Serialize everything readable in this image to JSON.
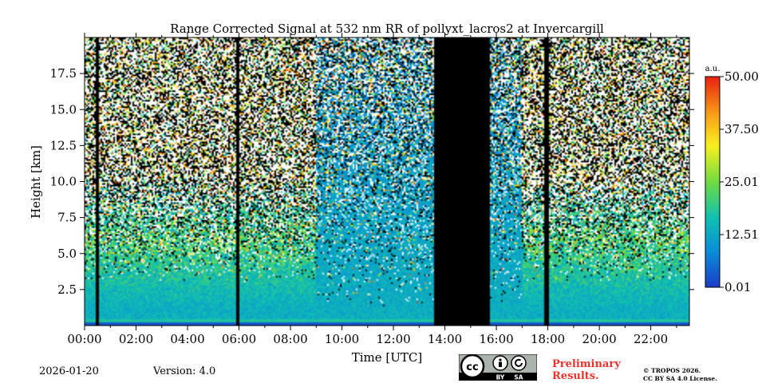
{
  "chart_data": {
    "type": "heatmap",
    "title": "Range Corrected Signal at 532 nm RR of pollyxt_lacros2 at Invercargill",
    "xlabel": "Time [UTC]",
    "ylabel": "Height [km]",
    "xlim": [
      0,
      23.5
    ],
    "ylim": [
      0,
      20
    ],
    "x_ticks": [
      0,
      2,
      4,
      6,
      8,
      10,
      12,
      14,
      16,
      18,
      20,
      22
    ],
    "x_tick_labels": [
      "00:00",
      "02:00",
      "04:00",
      "06:00",
      "08:00",
      "10:00",
      "12:00",
      "14:00",
      "16:00",
      "18:00",
      "20:00",
      "22:00"
    ],
    "y_ticks": [
      2.5,
      5.0,
      7.5,
      10.0,
      12.5,
      15.0,
      17.5
    ],
    "y_tick_labels": [
      "2.5",
      "5.0",
      "7.5",
      "10.0",
      "12.5",
      "15.0",
      "17.5"
    ],
    "colorbar": {
      "unit_label": "a.u.",
      "min": 0.01,
      "max": 50.0,
      "tick_values": [
        0.01,
        12.51,
        25.01,
        37.5,
        50.0
      ],
      "tick_labels": [
        "0.01",
        "12.51",
        "25.01",
        "37.50",
        "50.00"
      ],
      "colors": [
        "#1a3cc8",
        "#0a8ed8",
        "#10c0b0",
        "#70dc40",
        "#f8f020",
        "#f89818",
        "#e82010"
      ]
    },
    "no_data_periods": [
      {
        "start": 13.6,
        "end": 15.75
      }
    ],
    "data_gaps": [
      0.5,
      5.95,
      17.95
    ],
    "clear_periods": [
      {
        "start": 9.0,
        "end": 17.0
      }
    ]
  },
  "footer": {
    "date": "2026-01-20",
    "version": "Version: 4.0",
    "preliminary_line1": "Preliminary",
    "preliminary_line2": "Results.",
    "copyright_line1": "© TROPOS 2026.",
    "copyright_line2": "CC BY SA 4.0 License.",
    "license_by": "BY",
    "license_sa": "SA"
  }
}
